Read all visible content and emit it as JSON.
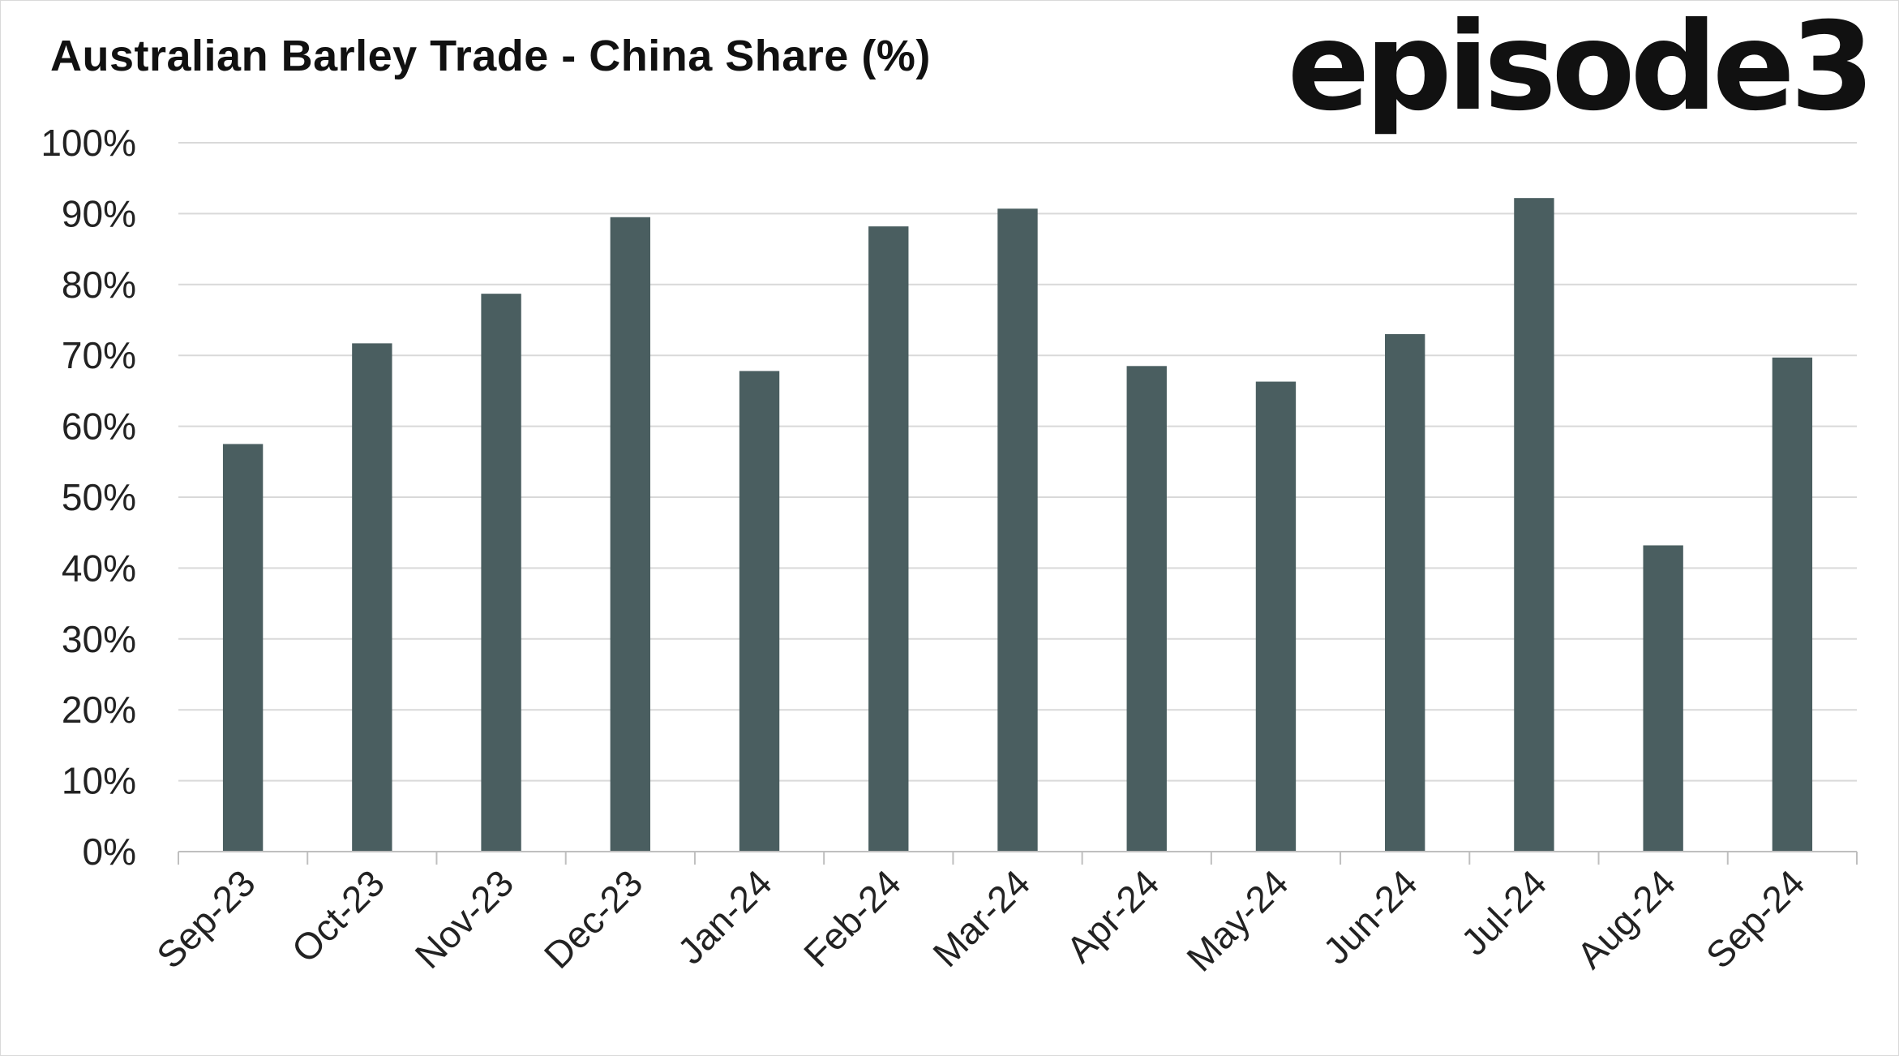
{
  "header": {
    "title": "Australian Barley Trade - China Share (%)",
    "logo_text": "episode3"
  },
  "colors": {
    "bar": "#4a5e60",
    "grid": "#d9d9d9",
    "axis": "#bfbfbf",
    "text": "#222222"
  },
  "chart_data": {
    "type": "bar",
    "title": "Australian Barley Trade - China Share (%)",
    "xlabel": "",
    "ylabel": "",
    "categories": [
      "Sep-23",
      "Oct-23",
      "Nov-23",
      "Dec-23",
      "Jan-24",
      "Feb-24",
      "Mar-24",
      "Apr-24",
      "May-24",
      "Jun-24",
      "Jul-24",
      "Aug-24",
      "Sep-24"
    ],
    "values": [
      57.5,
      71.7,
      78.7,
      89.5,
      67.8,
      88.2,
      90.7,
      68.5,
      66.3,
      73.0,
      92.2,
      43.2,
      69.7
    ],
    "ylim": [
      0,
      100
    ],
    "yticks": [
      0,
      10,
      20,
      30,
      40,
      50,
      60,
      70,
      80,
      90,
      100
    ],
    "ytick_labels": [
      "0%",
      "10%",
      "20%",
      "30%",
      "40%",
      "50%",
      "60%",
      "70%",
      "80%",
      "90%",
      "100%"
    ],
    "grid": true,
    "legend": "none"
  }
}
